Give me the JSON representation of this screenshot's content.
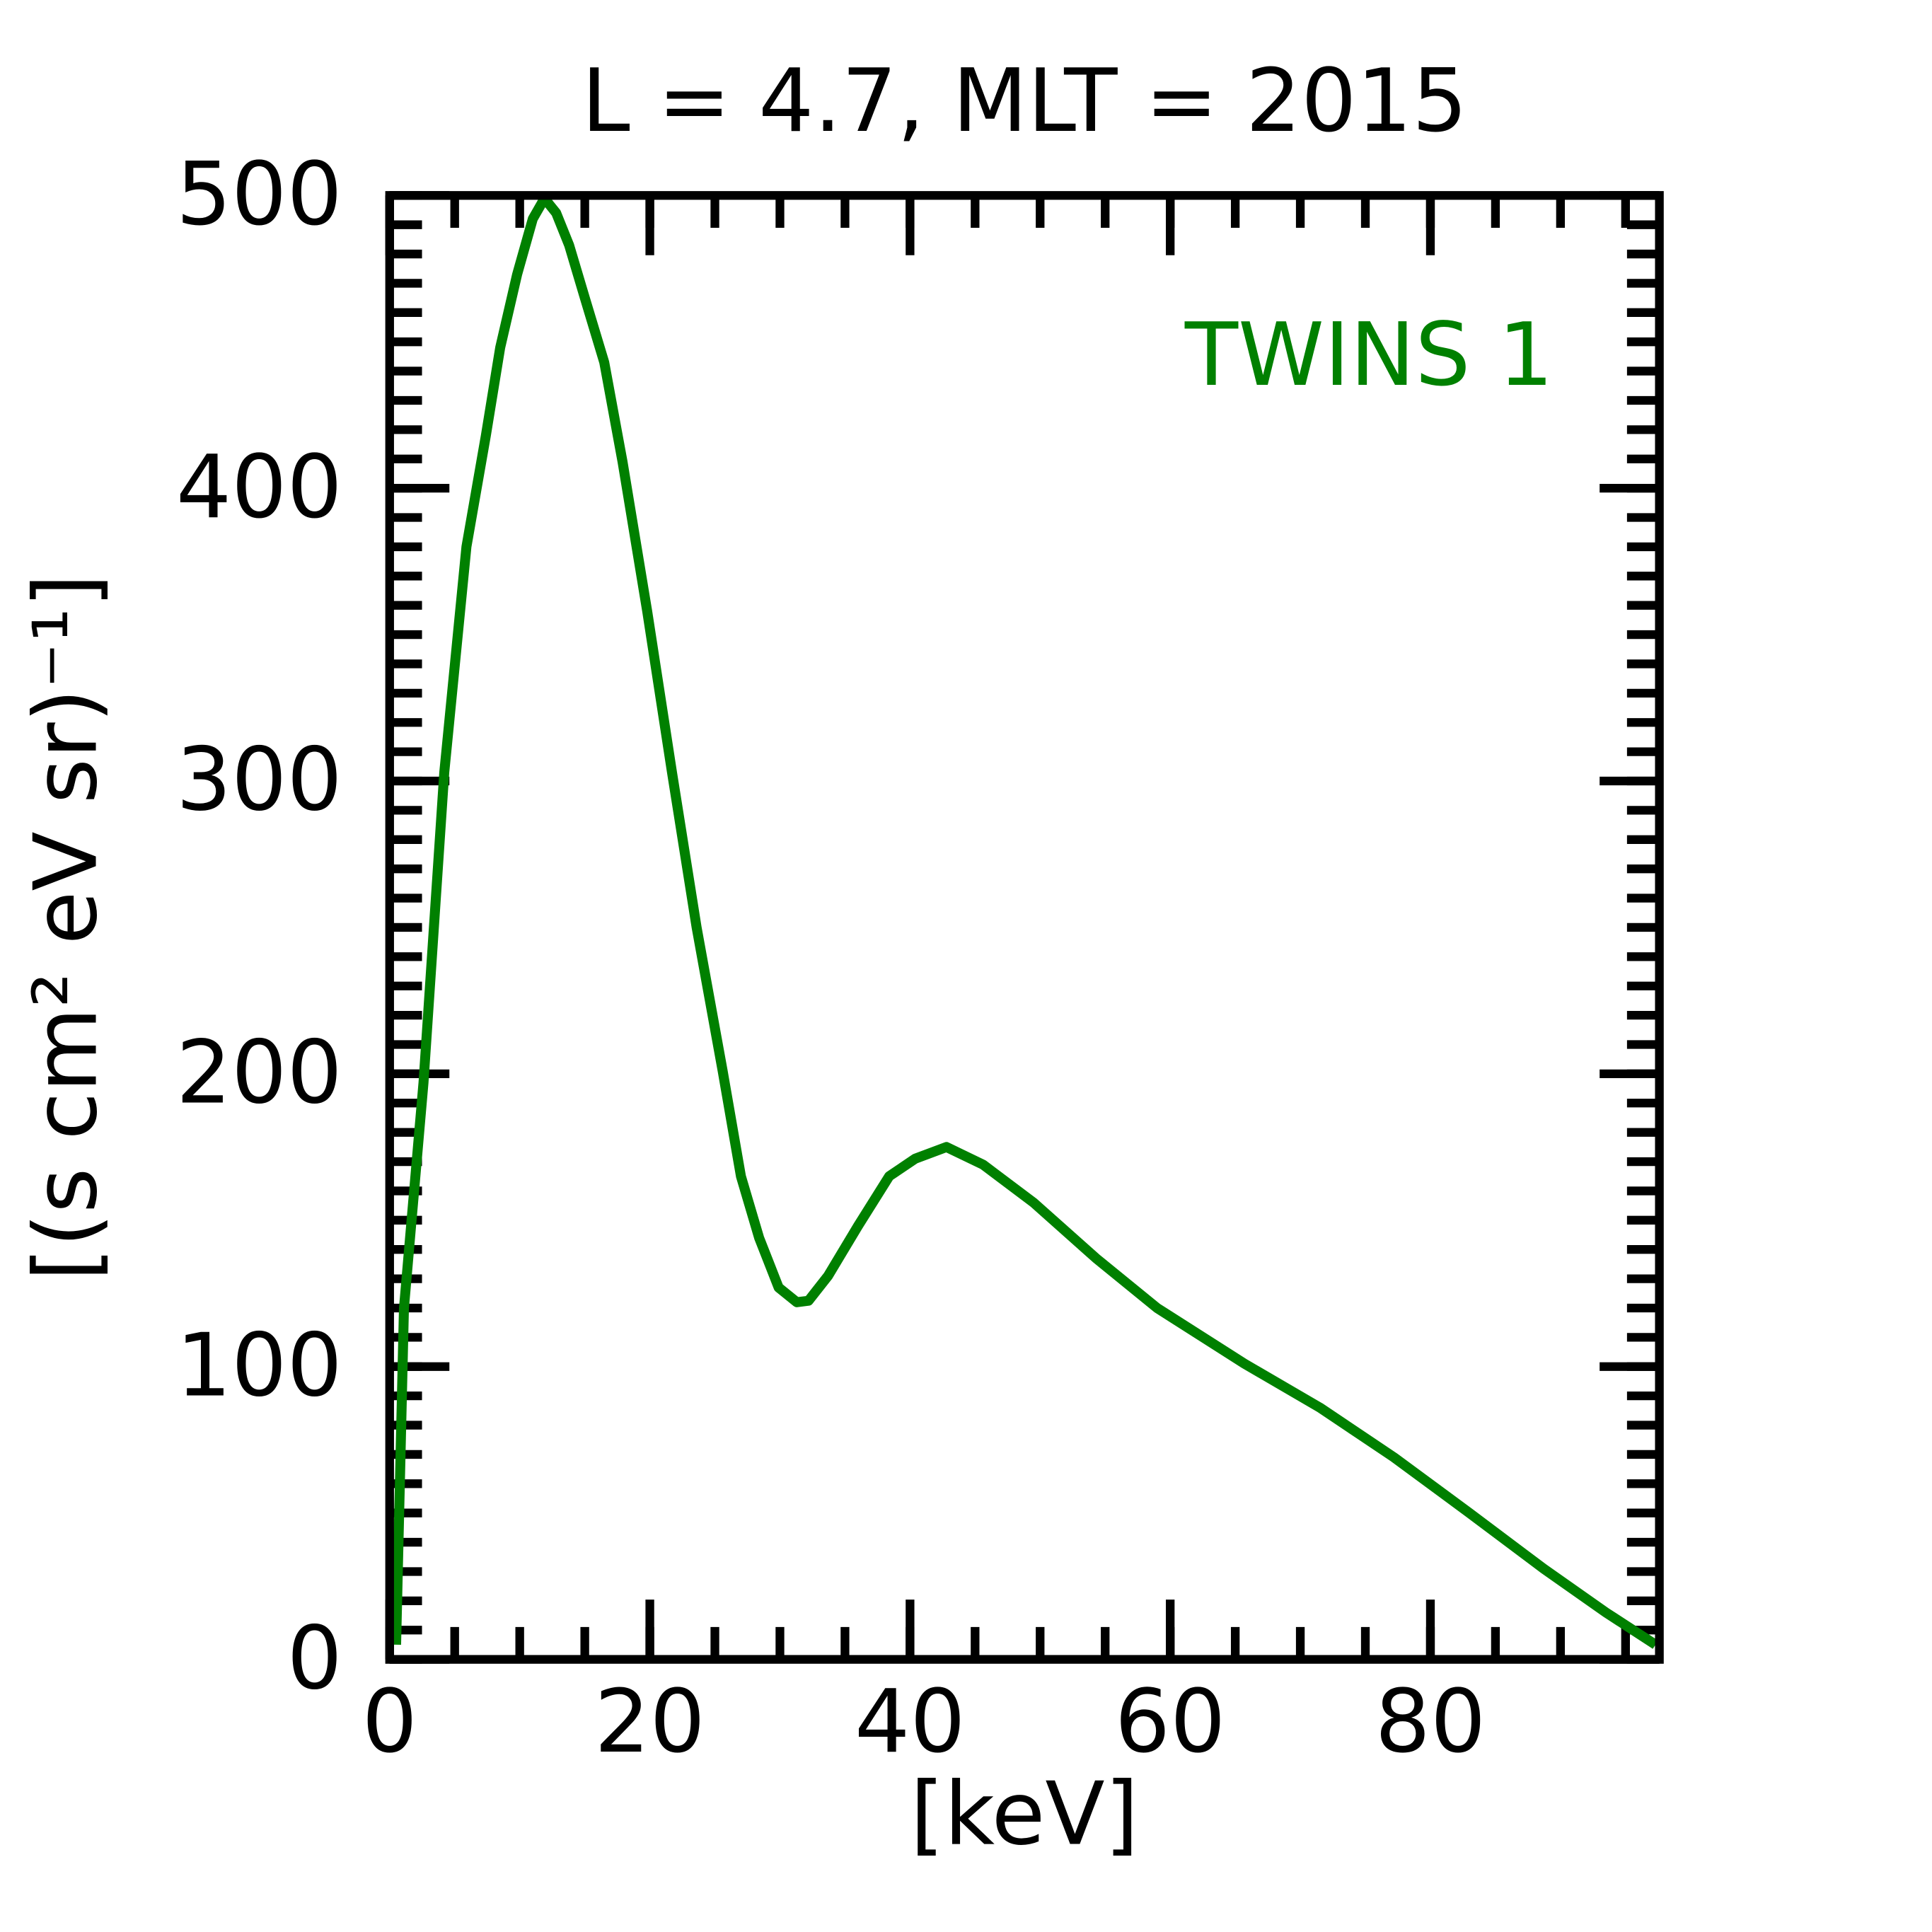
{
  "chart_data": {
    "type": "line",
    "title": "L =  4.7, MLT = 2015",
    "xlabel": "[keV]",
    "ylabel": "[(s cm² eV sr)⁻¹]",
    "xlim": [
      0,
      97.6
    ],
    "xticks": [
      0,
      20,
      40,
      60,
      80
    ],
    "ylim": [
      0,
      500
    ],
    "yticks": [
      0,
      100,
      200,
      300,
      400,
      500
    ],
    "legend": "upper right",
    "series": [
      {
        "name": "TWINS 1",
        "color": "#008000",
        "x": [
          0.5,
          1.1,
          2.6,
          4.2,
          5.9,
          7.4,
          8.5,
          9.8,
          11.0,
          11.9,
          12.8,
          13.8,
          15.0,
          16.5,
          17.9,
          19.8,
          21.7,
          23.6,
          25.6,
          27.0,
          28.4,
          29.9,
          31.3,
          32.2,
          33.7,
          36.0,
          38.4,
          40.4,
          42.8,
          45.6,
          49.5,
          54.3,
          59.0,
          65.7,
          71.5,
          77.2,
          83.0,
          88.7,
          93.5,
          97.3
        ],
        "values": [
          5,
          120,
          197,
          303,
          380,
          418,
          448,
          473,
          492,
          499,
          494,
          483,
          465,
          443,
          409,
          358,
          303,
          250,
          201,
          165,
          144,
          127,
          122,
          122.5,
          131,
          148,
          165,
          171,
          175,
          169,
          156,
          137,
          120,
          101,
          86,
          69,
          50,
          31,
          16,
          5
        ]
      }
    ]
  }
}
